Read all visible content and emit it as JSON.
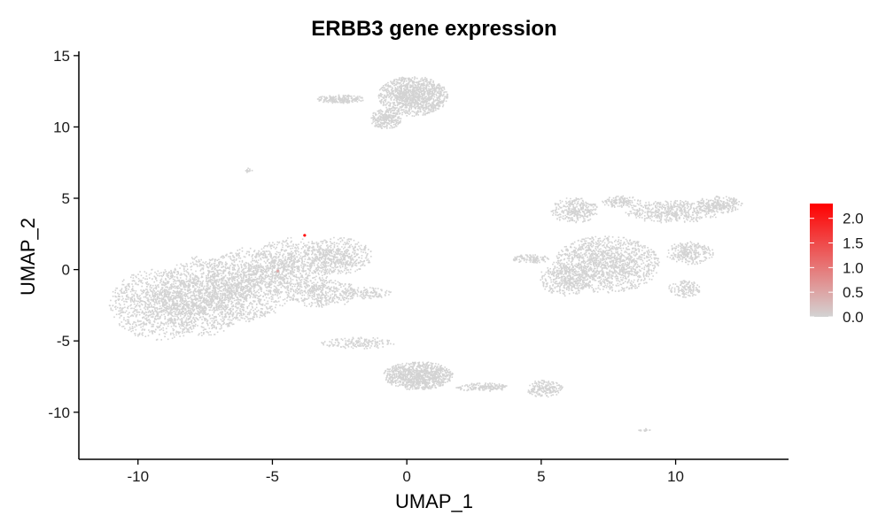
{
  "chart_data": {
    "type": "scatter",
    "title": "ERBB3 gene expression",
    "xlabel": "UMAP_1",
    "ylabel": "UMAP_2",
    "xlim": [
      -12.2,
      14.2
    ],
    "ylim": [
      -13.3,
      15.3
    ],
    "x_ticks": [
      -10,
      -5,
      0,
      5,
      10
    ],
    "x_tick_labels": [
      "-10",
      "-5",
      "0",
      "5",
      "10"
    ],
    "y_ticks": [
      -10,
      -5,
      0,
      5,
      10,
      15
    ],
    "y_tick_labels": [
      "-10",
      "-5",
      "0",
      "5",
      "10",
      "15"
    ],
    "grid": false,
    "legend_position": "right",
    "color_scale": {
      "low": "#d3d3d3",
      "high": "#ff0000",
      "min": 0,
      "max": 2.3,
      "ticks": [
        0,
        0.5,
        1,
        1.5,
        2
      ],
      "tick_labels": [
        "0.0",
        "0.5",
        "1.0",
        "1.5",
        "2.0"
      ]
    },
    "clusters": [
      {
        "name": "left-large",
        "n": 5200,
        "regions": [
          {
            "cx": -9.2,
            "cy": -2.4,
            "rx": 1.9,
            "ry": 2.5,
            "w": 3
          },
          {
            "cx": -7.6,
            "cy": -1.8,
            "rx": 1.6,
            "ry": 2.8,
            "w": 3
          },
          {
            "cx": -5.9,
            "cy": -1.0,
            "rx": 1.6,
            "ry": 2.6,
            "w": 3
          },
          {
            "cx": -4.3,
            "cy": 0.3,
            "rx": 1.5,
            "ry": 2.0,
            "w": 2
          },
          {
            "cx": -2.6,
            "cy": 1.0,
            "rx": 1.3,
            "ry": 1.3,
            "w": 1.5
          },
          {
            "cx": -3.2,
            "cy": -1.6,
            "rx": 1.4,
            "ry": 1.0,
            "w": 1
          },
          {
            "cx": -1.5,
            "cy": -1.6,
            "rx": 0.9,
            "ry": 0.4,
            "w": 0.3
          }
        ]
      },
      {
        "name": "top",
        "n": 1700,
        "regions": [
          {
            "cx": 0.2,
            "cy": 12.2,
            "rx": 1.3,
            "ry": 1.4,
            "w": 3
          },
          {
            "cx": -0.8,
            "cy": 10.6,
            "rx": 0.6,
            "ry": 0.7,
            "w": 0.6
          },
          {
            "cx": -2.5,
            "cy": 12.0,
            "rx": 0.9,
            "ry": 0.3,
            "w": 0.5
          }
        ]
      },
      {
        "name": "right-large",
        "n": 3500,
        "regions": [
          {
            "cx": 7.4,
            "cy": 0.4,
            "rx": 2.0,
            "ry": 2.0,
            "w": 4
          },
          {
            "cx": 5.9,
            "cy": -0.6,
            "rx": 1.0,
            "ry": 1.2,
            "w": 1
          },
          {
            "cx": 6.2,
            "cy": 4.2,
            "rx": 0.9,
            "ry": 0.9,
            "w": 0.9
          },
          {
            "cx": 9.9,
            "cy": 4.1,
            "rx": 1.8,
            "ry": 0.8,
            "w": 1.4
          },
          {
            "cx": 11.6,
            "cy": 4.6,
            "rx": 0.9,
            "ry": 0.6,
            "w": 0.7
          },
          {
            "cx": 10.5,
            "cy": 1.2,
            "rx": 0.9,
            "ry": 0.8,
            "w": 0.8
          },
          {
            "cx": 10.3,
            "cy": -1.3,
            "rx": 0.6,
            "ry": 0.6,
            "w": 0.4
          },
          {
            "cx": 4.6,
            "cy": 0.8,
            "rx": 0.7,
            "ry": 0.3,
            "w": 0.3
          },
          {
            "cx": 8.0,
            "cy": 4.8,
            "rx": 0.8,
            "ry": 0.4,
            "w": 0.4
          }
        ]
      },
      {
        "name": "bottom",
        "n": 1500,
        "regions": [
          {
            "cx": 0.4,
            "cy": -7.4,
            "rx": 1.3,
            "ry": 1.0,
            "w": 3
          },
          {
            "cx": -1.8,
            "cy": -5.1,
            "rx": 1.4,
            "ry": 0.4,
            "w": 0.6
          },
          {
            "cx": 2.8,
            "cy": -8.2,
            "rx": 1.0,
            "ry": 0.3,
            "w": 0.6
          },
          {
            "cx": 5.1,
            "cy": -8.3,
            "rx": 0.7,
            "ry": 0.6,
            "w": 0.8
          }
        ]
      },
      {
        "name": "small-top-left",
        "n": 14,
        "regions": [
          {
            "cx": -5.9,
            "cy": 7.0,
            "rx": 0.15,
            "ry": 0.15,
            "w": 1
          }
        ]
      },
      {
        "name": "small-bottom-right",
        "n": 18,
        "regions": [
          {
            "cx": 8.8,
            "cy": -11.2,
            "rx": 0.25,
            "ry": 0.1,
            "w": 1
          }
        ]
      }
    ],
    "expressing_points": [
      {
        "x": -3.8,
        "y": 2.4,
        "value": 2.3
      },
      {
        "x": -4.8,
        "y": -0.1,
        "value": 0.5
      }
    ]
  }
}
